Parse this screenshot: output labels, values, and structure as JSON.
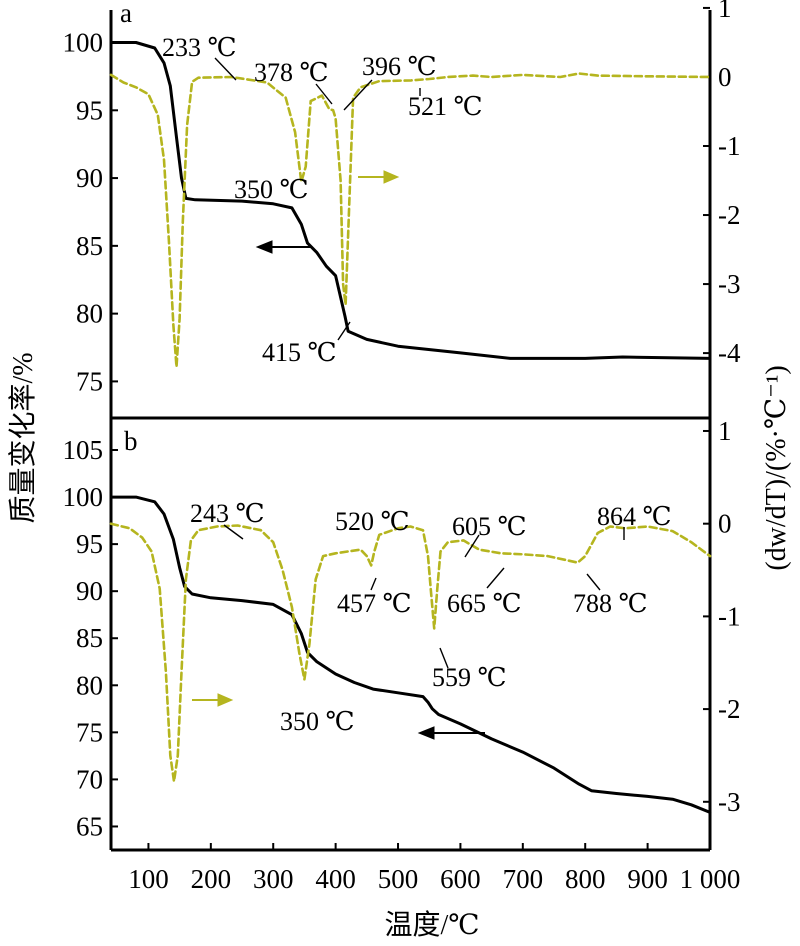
{
  "chart_data": {
    "type": "line",
    "xlabel": "温度/℃",
    "ylabel_left": "质量变化率/%",
    "ylabel_right": "(dw/dT)/(%·℃⁻¹)",
    "xlim": [
      40,
      1000
    ],
    "x_ticks": [
      100,
      200,
      300,
      400,
      500,
      600,
      700,
      800,
      900,
      1000
    ],
    "x_tick_labels": [
      "100",
      "200",
      "300",
      "400",
      "500",
      "600",
      "700",
      "800",
      "900",
      "1 000"
    ],
    "panels": [
      {
        "label": "a",
        "y_left": {
          "ticks": [
            75,
            80,
            85,
            90,
            95,
            100
          ],
          "range": [
            72.3,
            102.4
          ]
        },
        "y_right": {
          "ticks": [
            -4,
            -3,
            -2,
            -1,
            0,
            1
          ],
          "range": [
            -4.94,
            0.97
          ]
        },
        "series": [
          {
            "axis": "left",
            "color": "#000000",
            "style": "solid",
            "kind": "TG",
            "points": [
              [
                40,
                100
              ],
              [
                80,
                100
              ],
              [
                110,
                99.6
              ],
              [
                125,
                98.5
              ],
              [
                135,
                96.8
              ],
              [
                145,
                93
              ],
              [
                153,
                90
              ],
              [
                160,
                88.5
              ],
              [
                175,
                88.4
              ],
              [
                250,
                88.3
              ],
              [
                300,
                88.1
              ],
              [
                330,
                87.8
              ],
              [
                345,
                86.6
              ],
              [
                355,
                85.2
              ],
              [
                370,
                84.5
              ],
              [
                385,
                83.5
              ],
              [
                400,
                82.8
              ],
              [
                415,
                79.8
              ],
              [
                420,
                78.7
              ],
              [
                450,
                78.1
              ],
              [
                500,
                77.6
              ],
              [
                600,
                77.1
              ],
              [
                680,
                76.7
              ],
              [
                800,
                76.7
              ],
              [
                860,
                76.8
              ],
              [
                1000,
                76.7
              ]
            ]
          },
          {
            "axis": "right",
            "color": "#b5b51f",
            "style": "dashed",
            "kind": "DTG",
            "points": [
              [
                40,
                0.03
              ],
              [
                60,
                -0.08
              ],
              [
                80,
                -0.15
              ],
              [
                100,
                -0.25
              ],
              [
                115,
                -0.55
              ],
              [
                125,
                -1.2
              ],
              [
                133,
                -2.4
              ],
              [
                140,
                -3.6
              ],
              [
                145,
                -4.2
              ],
              [
                150,
                -3.5
              ],
              [
                155,
                -2.1
              ],
              [
                162,
                -0.7
              ],
              [
                170,
                -0.07
              ],
              [
                180,
                -0.01
              ],
              [
                233,
                0.0
              ],
              [
                290,
                -0.08
              ],
              [
                320,
                -0.3
              ],
              [
                335,
                -0.8
              ],
              [
                345,
                -1.52
              ],
              [
                352,
                -1.3
              ],
              [
                360,
                -0.35
              ],
              [
                378,
                -0.27
              ],
              [
                390,
                -0.47
              ],
              [
                396,
                -0.48
              ],
              [
                400,
                -0.6
              ],
              [
                408,
                -1.5
              ],
              [
                412,
                -3.0
              ],
              [
                416,
                -3.3
              ],
              [
                420,
                -2.3
              ],
              [
                428,
                -0.3
              ],
              [
                440,
                -0.15
              ],
              [
                470,
                -0.06
              ],
              [
                521,
                -0.05
              ],
              [
                550,
                -0.03
              ],
              [
                580,
                0.0
              ],
              [
                620,
                0.02
              ],
              [
                650,
                0.0
              ],
              [
                700,
                0.03
              ],
              [
                760,
                0.0
              ],
              [
                790,
                0.05
              ],
              [
                820,
                0.02
              ],
              [
                900,
                0.01
              ],
              [
                1000,
                0.0
              ]
            ]
          }
        ],
        "annotations": [
          "233 ℃",
          "378 ℃",
          "396 ℃",
          "521 ℃",
          "350 ℃",
          "415 ℃"
        ]
      },
      {
        "label": "b",
        "y_left": {
          "ticks": [
            65,
            70,
            75,
            80,
            85,
            90,
            95,
            100,
            105
          ],
          "range": [
            62.5,
            108.4
          ]
        },
        "y_right": {
          "ticks": [
            -3,
            -2,
            -1,
            0,
            1
          ],
          "range": [
            -3.52,
            1.14
          ]
        },
        "series": [
          {
            "axis": "left",
            "color": "#000000",
            "style": "solid",
            "kind": "TG",
            "points": [
              [
                40,
                100
              ],
              [
                80,
                100
              ],
              [
                110,
                99.5
              ],
              [
                125,
                98.2
              ],
              [
                140,
                95.5
              ],
              [
                150,
                92.5
              ],
              [
                158,
                90.5
              ],
              [
                170,
                89.7
              ],
              [
                200,
                89.3
              ],
              [
                250,
                89.0
              ],
              [
                300,
                88.6
              ],
              [
                330,
                87.5
              ],
              [
                345,
                85.5
              ],
              [
                355,
                83.5
              ],
              [
                370,
                82.5
              ],
              [
                400,
                81.2
              ],
              [
                430,
                80.3
              ],
              [
                460,
                79.6
              ],
              [
                500,
                79.2
              ],
              [
                540,
                78.8
              ],
              [
                548,
                78.2
              ],
              [
                555,
                77.5
              ],
              [
                565,
                76.9
              ],
              [
                600,
                75.9
              ],
              [
                650,
                74.3
              ],
              [
                700,
                72.9
              ],
              [
                750,
                71.2
              ],
              [
                790,
                69.5
              ],
              [
                810,
                68.8
              ],
              [
                850,
                68.5
              ],
              [
                900,
                68.2
              ],
              [
                940,
                67.9
              ],
              [
                970,
                67.3
              ],
              [
                1000,
                66.5
              ]
            ]
          },
          {
            "axis": "right",
            "color": "#b5b51f",
            "style": "dashed",
            "kind": "DTG",
            "points": [
              [
                40,
                0.0
              ],
              [
                70,
                -0.05
              ],
              [
                90,
                -0.15
              ],
              [
                105,
                -0.3
              ],
              [
                118,
                -0.7
              ],
              [
                128,
                -1.6
              ],
              [
                135,
                -2.5
              ],
              [
                141,
                -2.78
              ],
              [
                147,
                -2.5
              ],
              [
                153,
                -1.6
              ],
              [
                160,
                -0.6
              ],
              [
                168,
                -0.18
              ],
              [
                180,
                -0.07
              ],
              [
                210,
                -0.03
              ],
              [
                243,
                -0.02
              ],
              [
                280,
                -0.07
              ],
              [
                300,
                -0.2
              ],
              [
                315,
                -0.5
              ],
              [
                330,
                -0.9
              ],
              [
                342,
                -1.4
              ],
              [
                350,
                -1.68
              ],
              [
                358,
                -1.3
              ],
              [
                368,
                -0.6
              ],
              [
                380,
                -0.35
              ],
              [
                400,
                -0.32
              ],
              [
                440,
                -0.28
              ],
              [
                450,
                -0.35
              ],
              [
                457,
                -0.45
              ],
              [
                462,
                -0.3
              ],
              [
                470,
                -0.12
              ],
              [
                500,
                -0.05
              ],
              [
                520,
                -0.03
              ],
              [
                540,
                -0.07
              ],
              [
                548,
                -0.35
              ],
              [
                553,
                -0.75
              ],
              [
                558,
                -1.13
              ],
              [
                563,
                -0.7
              ],
              [
                568,
                -0.3
              ],
              [
                580,
                -0.2
              ],
              [
                605,
                -0.18
              ],
              [
                630,
                -0.28
              ],
              [
                665,
                -0.32
              ],
              [
                700,
                -0.33
              ],
              [
                740,
                -0.35
              ],
              [
                788,
                -0.42
              ],
              [
                800,
                -0.35
              ],
              [
                820,
                -0.1
              ],
              [
                840,
                -0.03
              ],
              [
                864,
                -0.05
              ],
              [
                900,
                -0.03
              ],
              [
                940,
                -0.08
              ],
              [
                970,
                -0.2
              ],
              [
                1000,
                -0.35
              ]
            ]
          }
        ],
        "annotations": [
          "243 ℃",
          "520 ℃",
          "605 ℃",
          "457 ℃",
          "665 ℃",
          "788 ℃",
          "350 ℃",
          "559 ℃",
          "864 ℃"
        ]
      }
    ]
  }
}
